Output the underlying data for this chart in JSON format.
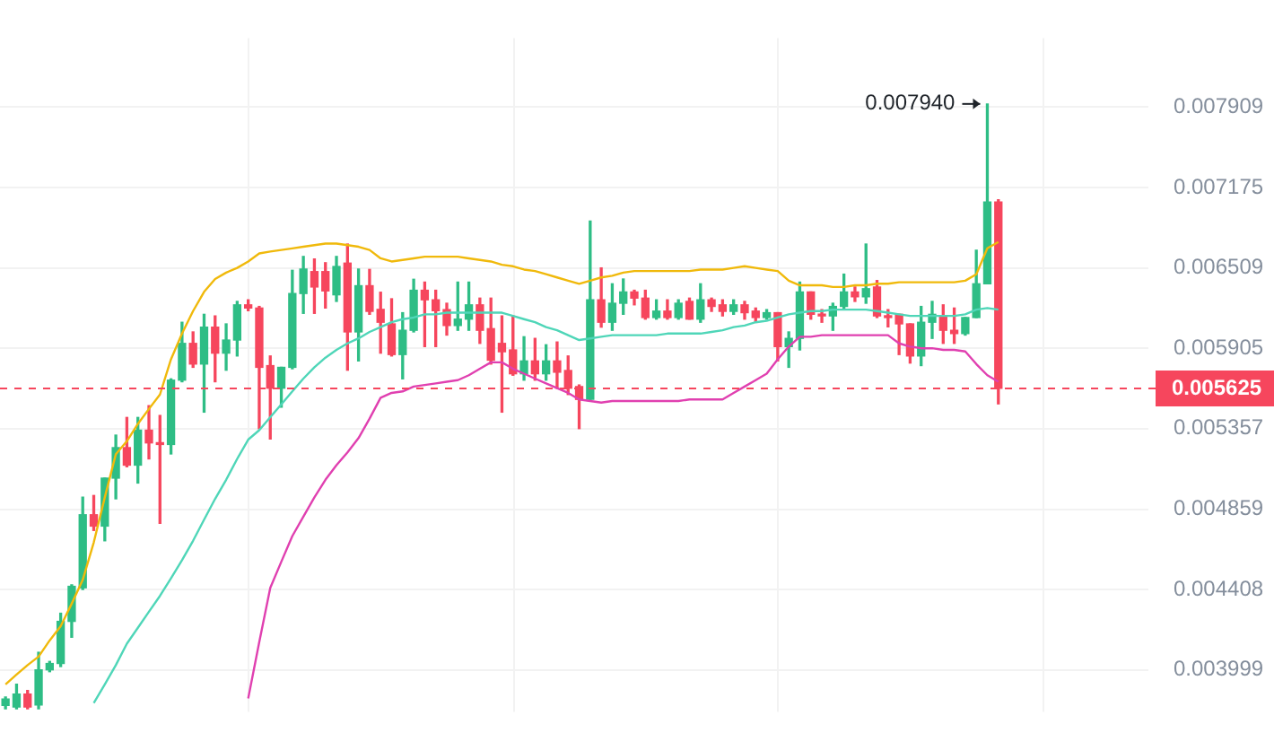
{
  "chart_data": {
    "type": "candlestick",
    "categories": [
      null,
      null,
      null,
      null,
      null,
      null,
      null,
      null,
      null,
      null,
      null,
      null,
      null,
      null,
      null,
      null,
      null,
      null,
      null,
      null,
      null,
      null,
      null,
      null,
      null,
      null,
      null,
      null,
      null,
      null,
      null,
      null,
      null,
      null,
      null,
      null,
      null,
      null,
      null,
      null,
      null,
      null,
      null,
      null,
      null,
      null,
      null,
      null,
      null,
      null,
      null,
      null,
      null,
      null,
      null,
      null,
      null,
      null,
      null,
      null,
      null,
      null,
      null,
      null,
      null,
      null,
      null,
      null,
      null,
      null,
      null,
      null,
      null,
      null,
      null,
      null,
      null,
      null,
      null,
      null,
      null,
      null,
      null,
      null,
      null,
      null,
      null,
      null,
      null,
      null,
      null
    ],
    "ohlc": [
      [
        0.00383,
        0.00387,
        0.003815,
        0.00386
      ],
      [
        0.003823,
        0.00393,
        0.003815,
        0.003883
      ],
      [
        0.003883,
        0.0039,
        0.003815,
        0.003823
      ],
      [
        0.003832,
        0.004085,
        0.003815,
        0.003999
      ],
      [
        0.003999,
        0.00404,
        0.00399,
        0.00403
      ],
      [
        0.00403,
        0.004283,
        0.004015,
        0.004241
      ],
      [
        0.004241,
        0.004433,
        0.00416,
        0.004425
      ],
      [
        0.004417,
        0.00493,
        0.004408,
        0.004826
      ],
      [
        0.004826,
        0.00494,
        0.004735,
        0.00476
      ],
      [
        0.00476,
        0.005045,
        0.004676,
        0.005045
      ],
      [
        0.005045,
        0.005315,
        0.00492,
        0.005235
      ],
      [
        0.005235,
        0.00543,
        0.005115,
        0.005125
      ],
      [
        0.005125,
        0.00543,
        0.005015,
        0.005347
      ],
      [
        0.005347,
        0.005508,
        0.005164,
        0.005265
      ],
      [
        0.005265,
        0.005443,
        0.004776,
        0.005255
      ],
      [
        0.005255,
        0.00569,
        0.005195,
        0.005681
      ],
      [
        0.005681,
        0.006094,
        0.00567,
        0.00594
      ],
      [
        0.00594,
        0.006023,
        0.00577,
        0.005793
      ],
      [
        0.005793,
        0.006153,
        0.005465,
        0.006058
      ],
      [
        0.006058,
        0.006141,
        0.00567,
        0.00587
      ],
      [
        0.00587,
        0.006082,
        0.00575,
        0.005964
      ],
      [
        0.005964,
        0.00625,
        0.00585,
        0.006224
      ],
      [
        0.006224,
        0.006262,
        0.00618,
        0.0062
      ],
      [
        0.0062,
        0.006212,
        0.005357,
        0.00577
      ],
      [
        0.005782,
        0.00585,
        0.00529,
        0.005626
      ],
      [
        0.005626,
        0.00577,
        0.005498,
        0.00577
      ],
      [
        0.00577,
        0.00649,
        0.00576,
        0.00631
      ],
      [
        0.00631,
        0.0066,
        0.00616,
        0.0065
      ],
      [
        0.00648,
        0.00658,
        0.00616,
        0.00636
      ],
      [
        0.00648,
        0.00655,
        0.0062,
        0.00633
      ],
      [
        0.0063,
        0.0066,
        0.00625,
        0.00652
      ],
      [
        0.006547,
        0.0067,
        0.00575,
        0.006023
      ],
      [
        0.006023,
        0.0065,
        0.005815,
        0.00637
      ],
      [
        0.00637,
        0.006497,
        0.006153,
        0.006175
      ],
      [
        0.00619,
        0.00632,
        0.00587,
        0.006094
      ],
      [
        0.006082,
        0.00627,
        0.00585,
        0.00586
      ],
      [
        0.00586,
        0.006165,
        0.00569,
        0.006035
      ],
      [
        0.006035,
        0.00642,
        0.006023,
        0.006335
      ],
      [
        0.006335,
        0.006398,
        0.005917,
        0.006262
      ],
      [
        0.006262,
        0.006335,
        0.005917,
        0.00618
      ],
      [
        0.006188,
        0.006236,
        0.006,
        0.00607
      ],
      [
        0.00607,
        0.006398,
        0.006035,
        0.006117
      ],
      [
        0.006117,
        0.006398,
        0.006035,
        0.006224
      ],
      [
        0.006224,
        0.006275,
        0.00594,
        0.006035
      ],
      [
        0.006047,
        0.006275,
        0.005793,
        0.00582
      ],
      [
        0.00594,
        0.006141,
        0.005465,
        0.00588
      ],
      [
        0.005893,
        0.006141,
        0.005715,
        0.005725
      ],
      [
        0.005725,
        0.005988,
        0.005681,
        0.005815
      ],
      [
        0.005815,
        0.005976,
        0.005681,
        0.005725
      ],
      [
        0.005725,
        0.00593,
        0.005681,
        0.005815
      ],
      [
        0.005815,
        0.00595,
        0.005625,
        0.005736
      ],
      [
        0.005748,
        0.00585,
        0.005583,
        0.005626
      ],
      [
        0.005637,
        0.005648,
        0.005357,
        0.00555
      ],
      [
        0.00555,
        0.00689,
        0.00555,
        0.006262
      ],
      [
        0.006262,
        0.006509,
        0.006058,
        0.006094
      ],
      [
        0.006094,
        0.006385,
        0.006035,
        0.006236
      ],
      [
        0.006236,
        0.006422,
        0.006153,
        0.006322
      ],
      [
        0.006322,
        0.006335,
        0.006224,
        0.006275
      ],
      [
        0.006275,
        0.006335,
        0.006117,
        0.006129
      ],
      [
        0.006129,
        0.006262,
        0.006117,
        0.006177
      ],
      [
        0.006177,
        0.006262,
        0.006117,
        0.006129
      ],
      [
        0.006129,
        0.006262,
        0.006117,
        0.006236
      ],
      [
        0.00625,
        0.006275,
        0.006117,
        0.006117
      ],
      [
        0.006117,
        0.006385,
        0.006094,
        0.006262
      ],
      [
        0.006262,
        0.006275,
        0.006175,
        0.006212
      ],
      [
        0.006224,
        0.006262,
        0.006141,
        0.006175
      ],
      [
        0.006175,
        0.006262,
        0.006153,
        0.006224
      ],
      [
        0.006224,
        0.00625,
        0.006117,
        0.006165
      ],
      [
        0.006177,
        0.0062,
        0.0061,
        0.006129
      ],
      [
        0.006129,
        0.006188,
        0.006117,
        0.006165
      ],
      [
        0.006165,
        0.006165,
        0.005815,
        0.005917
      ],
      [
        0.005917,
        0.006023,
        0.00577,
        0.005976
      ],
      [
        0.005976,
        0.006398,
        0.005893,
        0.006322
      ],
      [
        0.006322,
        0.006322,
        0.006117,
        0.006153
      ],
      [
        0.006153,
        0.006188,
        0.006094,
        0.006141
      ],
      [
        0.006141,
        0.006236,
        0.006035,
        0.006212
      ],
      [
        0.006212,
        0.00646,
        0.0062,
        0.006322
      ],
      [
        0.006322,
        0.00636,
        0.00625,
        0.006285
      ],
      [
        0.006285,
        0.0067,
        0.006236,
        0.006347
      ],
      [
        0.00636,
        0.00641,
        0.006129,
        0.006141
      ],
      [
        0.006141,
        0.006188,
        0.00606,
        0.006129
      ],
      [
        0.006153,
        0.006153,
        0.00586,
        0.006082
      ],
      [
        0.006082,
        0.006082,
        0.0058,
        0.00585
      ],
      [
        0.00585,
        0.006212,
        0.005782,
        0.006094
      ],
      [
        0.006094,
        0.00625,
        0.005976,
        0.006153
      ],
      [
        0.006141,
        0.006224,
        0.00594,
        0.006035
      ],
      [
        0.006035,
        0.0062,
        0.00594,
        0.006011
      ],
      [
        0.006011,
        0.006129,
        0.006,
        0.006129
      ],
      [
        0.006129,
        0.00665,
        0.006129,
        0.006385
      ],
      [
        0.006385,
        0.00794,
        0.006385,
        0.00705
      ],
      [
        0.00705,
        0.00707,
        0.00552,
        0.005625
      ]
    ],
    "colors": [
      "#2ebd85",
      "#2ebd85",
      "#f6465d",
      "#2ebd85",
      "#2ebd85",
      "#2ebd85",
      "#2ebd85",
      "#2ebd85",
      "#f6465d",
      "#2ebd85",
      "#2ebd85",
      "#f6465d",
      "#2ebd85",
      "#f6465d",
      "#f6465d",
      "#2ebd85",
      "#2ebd85",
      "#f6465d",
      "#2ebd85",
      "#f6465d",
      "#2ebd85",
      "#2ebd85",
      "#f6465d",
      "#f6465d",
      "#f6465d",
      "#2ebd85",
      "#2ebd85",
      "#2ebd85",
      "#f6465d",
      "#f6465d",
      "#2ebd85",
      "#f6465d",
      "#2ebd85",
      "#f6465d",
      "#f6465d",
      "#f6465d",
      "#2ebd85",
      "#2ebd85",
      "#f6465d",
      "#f6465d",
      "#f6465d",
      "#2ebd85",
      "#2ebd85",
      "#f6465d",
      "#f6465d",
      "#f6465d",
      "#f6465d",
      "#2ebd85",
      "#f6465d",
      "#2ebd85",
      "#f6465d",
      "#f6465d",
      "#f6465d",
      "#2ebd85",
      "#f6465d",
      "#2ebd85",
      "#2ebd85",
      "#f6465d",
      "#f6465d",
      "#2ebd85",
      "#f6465d",
      "#2ebd85",
      "#f6465d",
      "#2ebd85",
      "#f6465d",
      "#f6465d",
      "#2ebd85",
      "#f6465d",
      "#f6465d",
      "#2ebd85",
      "#f6465d",
      "#2ebd85",
      "#2ebd85",
      "#f6465d",
      "#f6465d",
      "#2ebd85",
      "#2ebd85",
      "#f6465d",
      "#2ebd85",
      "#f6465d",
      "#f6465d",
      "#f6465d",
      "#f6465d",
      "#2ebd85",
      "#2ebd85",
      "#f6465d",
      "#f6465d",
      "#2ebd85",
      "#2ebd85",
      "#2ebd85",
      "#f6465d"
    ],
    "series": [
      {
        "type": "line",
        "color": "#f0b90b",
        "values": [
          0.003929,
          0.003976,
          0.004022,
          0.004064,
          0.004144,
          0.004216,
          0.004333,
          0.00446,
          0.004667,
          0.004929,
          0.005194,
          0.005276,
          0.005388,
          0.005486,
          0.005583,
          0.005827,
          0.006011,
          0.006177,
          0.006323,
          0.006422,
          0.006472,
          0.006509,
          0.00656,
          0.006624,
          0.006639,
          0.006652,
          0.006665,
          0.006678,
          0.006691,
          0.006704,
          0.006704,
          0.006691,
          0.006678,
          0.006652,
          0.006585,
          0.00656,
          0.006572,
          0.006585,
          0.006598,
          0.006598,
          0.006598,
          0.006598,
          0.006585,
          0.006572,
          0.00656,
          0.006534,
          0.006522,
          0.006496,
          0.006484,
          0.006459,
          0.006434,
          0.006409,
          0.006385,
          0.006409,
          0.006434,
          0.006447,
          0.006472,
          0.006484,
          0.006484,
          0.006484,
          0.006484,
          0.006484,
          0.006484,
          0.006496,
          0.006496,
          0.006496,
          0.006509,
          0.006522,
          0.006509,
          0.006496,
          0.006484,
          0.006409,
          0.006373,
          0.006373,
          0.006373,
          0.00636,
          0.00636,
          0.006373,
          0.006373,
          0.006385,
          0.006385,
          0.006397,
          0.006397,
          0.006397,
          0.006397,
          0.006397,
          0.006397,
          0.006409,
          0.006459,
          0.006665,
          0.006717
        ]
      },
      {
        "type": "line",
        "color": "#4fd6b8",
        "values": [
          null,
          null,
          null,
          null,
          null,
          null,
          null,
          null,
          0.003841,
          0.003929,
          0.004022,
          0.004128,
          0.004208,
          0.004291,
          0.004374,
          0.004468,
          0.004568,
          0.004676,
          0.004797,
          0.00492,
          0.005035,
          0.005164,
          0.005286,
          0.005347,
          0.005432,
          0.005517,
          0.005604,
          0.005692,
          0.00577,
          0.005838,
          0.005893,
          0.00594,
          0.005976,
          0.006023,
          0.006058,
          0.006094,
          0.006117,
          0.006129,
          0.006153,
          0.006153,
          0.006165,
          0.006165,
          0.006165,
          0.006165,
          0.006165,
          0.006165,
          0.006141,
          0.006117,
          0.006094,
          0.006058,
          0.006035,
          0.005999,
          0.005964,
          0.005976,
          0.005988,
          0.005999,
          0.005999,
          0.005999,
          0.005999,
          0.005999,
          0.006011,
          0.006011,
          0.006011,
          0.006011,
          0.006023,
          0.006035,
          0.006058,
          0.00607,
          0.006094,
          0.006105,
          0.006129,
          0.006153,
          0.006165,
          0.006177,
          0.006177,
          0.006188,
          0.006188,
          0.006188,
          0.006188,
          0.006177,
          0.006165,
          0.006153,
          0.006141,
          0.006141,
          0.006141,
          0.006141,
          0.006141,
          0.006153,
          0.006188,
          0.0062,
          0.006188
        ]
      },
      {
        "type": "line",
        "color": "#e040b0",
        "values": [
          null,
          null,
          null,
          null,
          null,
          null,
          null,
          null,
          null,
          null,
          null,
          null,
          null,
          null,
          null,
          null,
          null,
          null,
          null,
          null,
          null,
          null,
          0.003863,
          0.004136,
          0.004417,
          0.004559,
          0.004703,
          0.004815,
          0.004929,
          0.005035,
          0.005125,
          0.005205,
          0.005296,
          0.005422,
          0.005561,
          0.005594,
          0.005604,
          0.005637,
          0.005648,
          0.005659,
          0.00567,
          0.005681,
          0.005715,
          0.00576,
          0.005805,
          0.005805,
          0.00576,
          0.005726,
          0.005692,
          0.005659,
          0.005626,
          0.005594,
          0.00555,
          0.005539,
          0.005529,
          0.005539,
          0.005539,
          0.005539,
          0.005539,
          0.005539,
          0.005539,
          0.005539,
          0.00555,
          0.00555,
          0.00555,
          0.00555,
          0.005594,
          0.005637,
          0.005681,
          0.005726,
          0.005827,
          0.005917,
          0.005988,
          0.005988,
          0.005999,
          0.005999,
          0.005999,
          0.005999,
          0.005999,
          0.005999,
          0.005999,
          0.00594,
          0.005917,
          0.005905,
          0.005905,
          0.005893,
          0.005893,
          0.005882,
          0.005793,
          0.005715,
          0.00567
        ]
      }
    ],
    "ylim": [
      0.00381,
      0.0086
    ],
    "yticks": [
      0.003999,
      0.004408,
      0.004859,
      0.005357,
      0.005905,
      0.006509,
      0.007175,
      0.007909
    ],
    "log": true,
    "grid": true,
    "marker": "none",
    "tick_labels": "y",
    "ref_lines": [
      {
        "axis": "y",
        "value": 0.005625,
        "label": "0.005625",
        "color": "#f6465d",
        "line_style": "dashed"
      }
    ],
    "annotations": [
      "0.007940"
    ]
  }
}
